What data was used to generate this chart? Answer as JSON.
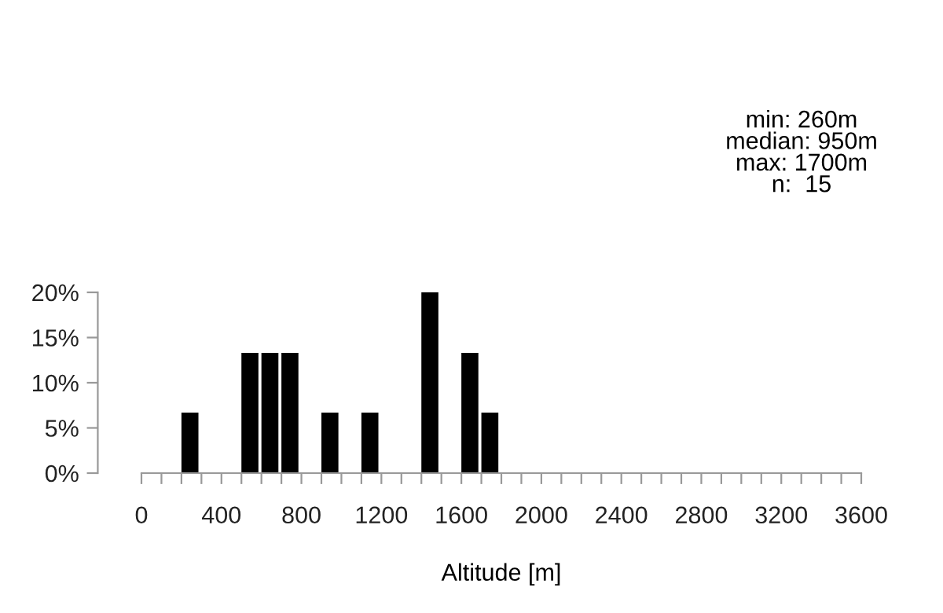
{
  "chart_data": {
    "type": "histogram",
    "xlabel": "Altitude [m]",
    "bins": [
      200,
      300,
      400,
      500,
      600,
      700,
      800,
      900,
      1000,
      1100,
      1200,
      1300,
      1400,
      1500,
      1600,
      1700,
      1800
    ],
    "values": [
      6.7,
      0,
      0,
      13.3,
      13.3,
      13.3,
      0,
      6.7,
      0,
      6.7,
      0,
      0,
      20,
      0,
      13.3,
      6.7
    ],
    "color": "#000000",
    "xlim": [
      0,
      3600
    ],
    "xticks": [
      0,
      {
        "value": 100,
        "label": null
      },
      {
        "value": 200,
        "label": null
      },
      {
        "value": 300,
        "label": null
      },
      400,
      {
        "value": 500,
        "label": null
      },
      {
        "value": 600,
        "label": null
      },
      {
        "value": 700,
        "label": null
      },
      800,
      {
        "value": 900,
        "label": null
      },
      {
        "value": 1000,
        "label": null
      },
      {
        "value": 1100,
        "label": null
      },
      1200,
      {
        "value": 1300,
        "label": null
      },
      {
        "value": 1400,
        "label": null
      },
      {
        "value": 1500,
        "label": null
      },
      1600,
      {
        "value": 1700,
        "label": null
      },
      {
        "value": 1800,
        "label": null
      },
      {
        "value": 1900,
        "label": null
      },
      2000,
      {
        "value": 2100,
        "label": null
      },
      {
        "value": 2200,
        "label": null
      },
      {
        "value": 2300,
        "label": null
      },
      2400,
      {
        "value": 2500,
        "label": null
      },
      {
        "value": 2600,
        "label": null
      },
      {
        "value": 2700,
        "label": null
      },
      2800,
      {
        "value": 2900,
        "label": null
      },
      {
        "value": 3000,
        "label": null
      },
      {
        "value": 3100,
        "label": null
      },
      3200,
      {
        "value": 3300,
        "label": null
      },
      {
        "value": 3400,
        "label": null
      },
      {
        "value": 3500,
        "label": null
      },
      3600
    ],
    "ylim": [
      0,
      20
    ],
    "yticks": [
      {
        "value": 0,
        "label": "0%"
      },
      {
        "value": 5,
        "label": "5%"
      },
      {
        "value": 10,
        "label": "10%"
      },
      {
        "value": 15,
        "label": "15%"
      },
      {
        "value": 20,
        "label": "20%"
      }
    ],
    "grid": false,
    "legend": false,
    "annotations": [
      "min: 260m\nmedian: 950m\nmax: 1700m\nn:  15"
    ]
  }
}
